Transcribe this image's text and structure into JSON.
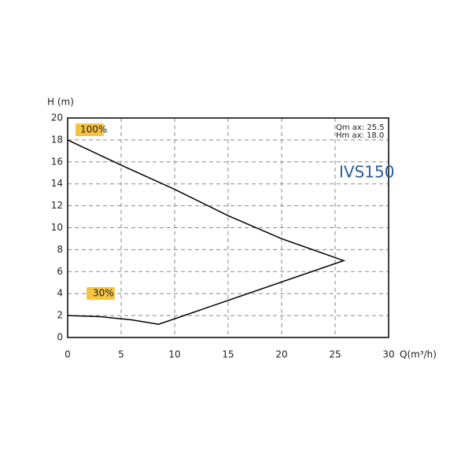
{
  "chart_data": {
    "type": "line",
    "x_label": "Q(m³/h)",
    "y_label": "H (m)",
    "xlim": [
      0,
      30
    ],
    "ylim": [
      0,
      20
    ],
    "xticks": [
      0,
      5,
      10,
      15,
      20,
      25,
      30
    ],
    "yticks": [
      0,
      2,
      4,
      6,
      8,
      10,
      12,
      14,
      16,
      18,
      20
    ],
    "grid": true,
    "series": [
      {
        "color": "#000000",
        "x": [
          0,
          5,
          10,
          15,
          20,
          25.8,
          8.5,
          6,
          3,
          0
        ],
        "values": [
          18,
          15.7,
          13.5,
          11.1,
          9,
          7,
          1.2,
          1.6,
          1.9,
          2
        ]
      }
    ],
    "annotations": [
      "100%",
      "30%",
      "Qm ax: 25.5",
      "Hm ax: 18.0",
      "IVS150"
    ]
  }
}
